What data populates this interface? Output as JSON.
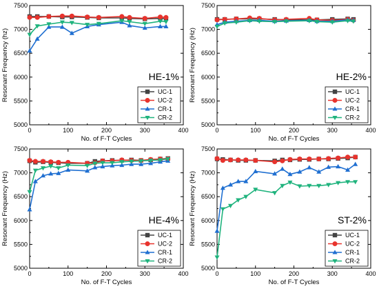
{
  "chart_data": [
    {
      "type": "line",
      "label": "HE-1%",
      "xlabel": "No. of F-T Cycles",
      "ylabel": "Resonant Frequency (hz)",
      "xlim": [
        0,
        400
      ],
      "ylim": [
        5000,
        7500
      ],
      "xticks": [
        0,
        100,
        200,
        300,
        400
      ],
      "yticks": [
        5000,
        5500,
        6000,
        6500,
        7000,
        7500
      ],
      "legend_position": "lower-right",
      "series": [
        {
          "name": "UC-1",
          "color": "#444444",
          "marker": "square",
          "x": [
            0,
            20,
            50,
            85,
            110,
            150,
            180,
            240,
            260,
            300,
            340,
            355
          ],
          "y": [
            7270,
            7270,
            7270,
            7260,
            7260,
            7250,
            7240,
            7240,
            7230,
            7220,
            7230,
            7230
          ]
        },
        {
          "name": "UC-2",
          "color": "#e8332d",
          "marker": "circle",
          "x": [
            0,
            20,
            50,
            85,
            110,
            150,
            180,
            240,
            260,
            300,
            340,
            355
          ],
          "y": [
            7250,
            7250,
            7270,
            7280,
            7280,
            7260,
            7250,
            7270,
            7250,
            7230,
            7260,
            7250
          ]
        },
        {
          "name": "CR-1",
          "color": "#1f6fd1",
          "marker": "triangle-up",
          "x": [
            0,
            20,
            50,
            85,
            110,
            150,
            180,
            240,
            260,
            300,
            340,
            355
          ],
          "y": [
            6550,
            6800,
            7050,
            7050,
            6920,
            7060,
            7100,
            7150,
            7080,
            7030,
            7060,
            7060
          ]
        },
        {
          "name": "CR-2",
          "color": "#1fb37d",
          "marker": "triangle-down",
          "x": [
            0,
            20,
            50,
            85,
            110,
            150,
            180,
            240,
            260,
            300,
            340,
            355
          ],
          "y": [
            6890,
            7070,
            7110,
            7150,
            7140,
            7100,
            7120,
            7180,
            7160,
            7120,
            7170,
            7160
          ]
        }
      ]
    },
    {
      "type": "line",
      "label": "HE-2%",
      "xlabel": "No. of F-T Cycles",
      "ylabel": "Resonant Frequency (Hz)",
      "xlim": [
        0,
        400
      ],
      "ylim": [
        5000,
        7500
      ],
      "xticks": [
        0,
        100,
        200,
        300,
        400
      ],
      "yticks": [
        5000,
        5500,
        6000,
        6500,
        7000,
        7500
      ],
      "legend_position": "lower-right",
      "series": [
        {
          "name": "UC-1",
          "color": "#444444",
          "marker": "square",
          "x": [
            0,
            20,
            50,
            85,
            110,
            150,
            180,
            240,
            260,
            300,
            340,
            355
          ],
          "y": [
            7210,
            7210,
            7220,
            7220,
            7220,
            7210,
            7200,
            7200,
            7200,
            7210,
            7220,
            7210
          ]
        },
        {
          "name": "UC-2",
          "color": "#e8332d",
          "marker": "circle",
          "x": [
            0,
            20,
            50,
            85,
            110,
            150,
            180,
            240,
            260,
            300,
            340,
            355
          ],
          "y": [
            7200,
            7210,
            7220,
            7240,
            7230,
            7200,
            7210,
            7230,
            7200,
            7190,
            7210,
            7190
          ]
        },
        {
          "name": "CR-1",
          "color": "#1f6fd1",
          "marker": "triangle-up",
          "x": [
            0,
            20,
            50,
            85,
            110,
            150,
            180,
            240,
            260,
            300,
            340,
            355
          ],
          "y": [
            7100,
            7150,
            7170,
            7190,
            7190,
            7170,
            7180,
            7190,
            7170,
            7170,
            7200,
            7190
          ]
        },
        {
          "name": "CR-2",
          "color": "#1fb37d",
          "marker": "triangle-down",
          "x": [
            0,
            20,
            50,
            85,
            110,
            150,
            180,
            240,
            260,
            300,
            340,
            355
          ],
          "y": [
            7060,
            7130,
            7150,
            7180,
            7170,
            7160,
            7170,
            7180,
            7160,
            7150,
            7180,
            7170
          ]
        }
      ]
    },
    {
      "type": "line",
      "label": "HE-4%",
      "xlabel": "No. of F-T Cycles",
      "ylabel": "Resonant Frequency (Hz)",
      "xlim": [
        0,
        400
      ],
      "ylim": [
        5000,
        7500
      ],
      "xticks": [
        0,
        100,
        200,
        300,
        400
      ],
      "yticks": [
        5000,
        5500,
        6000,
        6500,
        7000,
        7500
      ],
      "legend_position": "lower-right",
      "series": [
        {
          "name": "UC-1",
          "color": "#444444",
          "marker": "square",
          "x": [
            0,
            15,
            35,
            55,
            75,
            100,
            150,
            170,
            190,
            215,
            240,
            265,
            290,
            315,
            340,
            360
          ],
          "y": [
            7250,
            7220,
            7230,
            7220,
            7210,
            7200,
            7200,
            7240,
            7250,
            7260,
            7260,
            7270,
            7260,
            7270,
            7290,
            7300
          ]
        },
        {
          "name": "UC-2",
          "color": "#e8332d",
          "marker": "circle",
          "x": [
            0,
            15,
            35,
            55,
            75,
            100,
            150,
            170,
            190,
            215,
            240,
            265,
            290,
            315,
            340,
            360
          ],
          "y": [
            7260,
            7240,
            7240,
            7230,
            7220,
            7220,
            7200,
            7210,
            7250,
            7250,
            7270,
            7260,
            7260,
            7280,
            7290,
            7290
          ]
        },
        {
          "name": "CR-1",
          "color": "#1f6fd1",
          "marker": "triangle-up",
          "x": [
            0,
            15,
            35,
            55,
            75,
            100,
            150,
            170,
            190,
            215,
            240,
            265,
            290,
            315,
            340,
            360
          ],
          "y": [
            6230,
            6820,
            6940,
            6980,
            6990,
            7060,
            7040,
            7110,
            7130,
            7150,
            7160,
            7180,
            7180,
            7200,
            7230,
            7250
          ]
        },
        {
          "name": "CR-2",
          "color": "#1fb37d",
          "marker": "triangle-down",
          "x": [
            0,
            15,
            35,
            55,
            75,
            100,
            150,
            170,
            190,
            215,
            240,
            265,
            290,
            315,
            340,
            360
          ],
          "y": [
            6600,
            7050,
            7100,
            7140,
            7100,
            7160,
            7150,
            7200,
            7210,
            7210,
            7230,
            7240,
            7250,
            7260,
            7270,
            7290
          ]
        }
      ]
    },
    {
      "type": "line",
      "label": "ST-2%",
      "xlabel": "No. of F-T Cycles",
      "ylabel": "Resonant Frequency (Hz)",
      "xlim": [
        0,
        400
      ],
      "ylim": [
        5000,
        7500
      ],
      "xticks": [
        0,
        100,
        200,
        300,
        400
      ],
      "yticks": [
        5000,
        5500,
        6000,
        6500,
        7000,
        7500
      ],
      "legend_position": "lower-right",
      "series": [
        {
          "name": "UC-1",
          "color": "#444444",
          "marker": "square",
          "x": [
            0,
            15,
            35,
            55,
            75,
            100,
            150,
            170,
            190,
            215,
            240,
            265,
            290,
            315,
            340,
            360
          ],
          "y": [
            7290,
            7280,
            7270,
            7260,
            7260,
            7260,
            7250,
            7270,
            7270,
            7280,
            7280,
            7290,
            7290,
            7300,
            7310,
            7330
          ]
        },
        {
          "name": "UC-2",
          "color": "#e8332d",
          "marker": "circle",
          "x": [
            0,
            15,
            35,
            55,
            75,
            100,
            150,
            170,
            190,
            215,
            240,
            265,
            290,
            315,
            340,
            360
          ],
          "y": [
            7300,
            7260,
            7270,
            7270,
            7270,
            7260,
            7230,
            7250,
            7280,
            7290,
            7290,
            7290,
            7300,
            7310,
            7330,
            7330
          ]
        },
        {
          "name": "CR-1",
          "color": "#1f6fd1",
          "marker": "triangle-up",
          "x": [
            0,
            15,
            35,
            55,
            75,
            100,
            150,
            170,
            190,
            215,
            240,
            265,
            290,
            315,
            340,
            360
          ],
          "y": [
            5780,
            6680,
            6750,
            6820,
            6820,
            7030,
            6980,
            7080,
            6970,
            7020,
            7110,
            7020,
            7120,
            7130,
            7060,
            7180
          ]
        },
        {
          "name": "CR-2",
          "color": "#1fb37d",
          "marker": "triangle-down",
          "x": [
            0,
            15,
            35,
            55,
            75,
            100,
            150,
            170,
            190,
            215,
            240,
            265,
            290,
            315,
            340,
            360
          ],
          "y": [
            5230,
            6240,
            6310,
            6430,
            6500,
            6650,
            6580,
            6730,
            6800,
            6720,
            6730,
            6730,
            6750,
            6790,
            6810,
            6810
          ]
        }
      ]
    }
  ]
}
